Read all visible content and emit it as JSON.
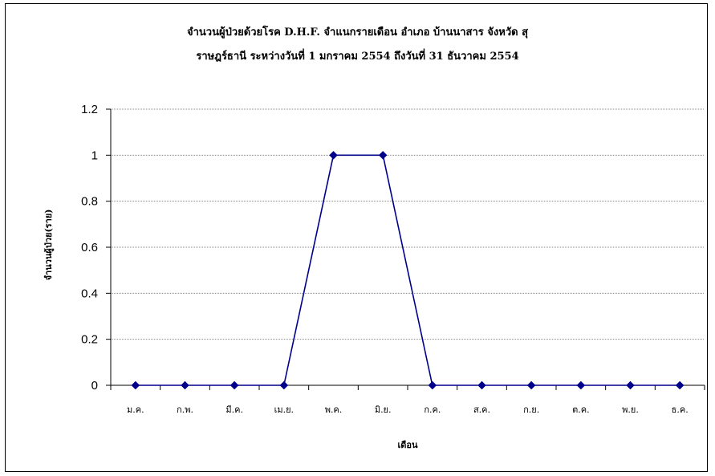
{
  "chart_data": {
    "type": "line",
    "title": "จำนวนผู้ป่วยด้วยโรค D.H.F. จำแนกรายเดือน   อำเภอ บ้านนาสาร จังหวัด สุ",
    "subtitle": "ราษฎร์ธานี ระหว่างวันที่ 1 มกราคม 2554 ถึงวันที่ 31 ธันวาคม 2554",
    "xlabel": "เดือน",
    "ylabel": "จำนวนผู้ป่วย(ราย)",
    "categories": [
      "ม.ค.",
      "ก.พ.",
      "มี.ค.",
      "เม.ย.",
      "พ.ค.",
      "มิ.ย.",
      "ก.ค.",
      "ส.ค.",
      "ก.ย.",
      "ต.ค.",
      "พ.ย.",
      "ธ.ค."
    ],
    "values": [
      0,
      0,
      0,
      0,
      1,
      1,
      0,
      0,
      0,
      0,
      0,
      0
    ],
    "ylim": [
      0,
      1.2
    ],
    "yticks": [
      "0",
      "0.2",
      "0.4",
      "0.6",
      "0.8",
      "1",
      "1.2"
    ],
    "grid": true,
    "legend": "none",
    "line_color": "#00008B",
    "marker": "diamond"
  }
}
